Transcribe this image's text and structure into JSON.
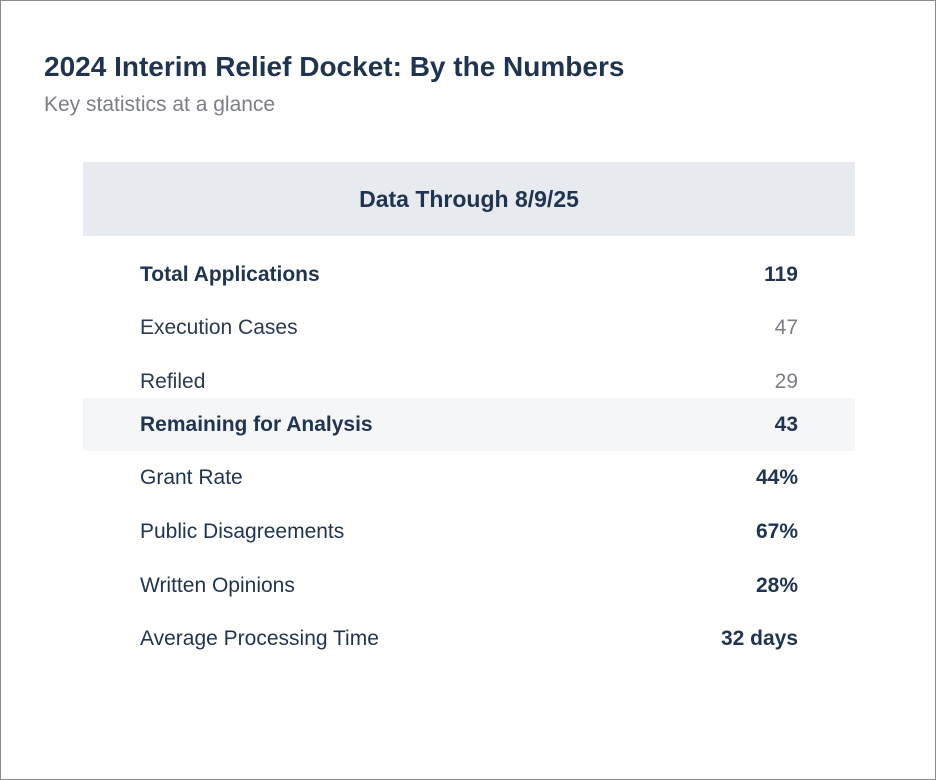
{
  "header": {
    "title": "2024 Interim Relief Docket: By the Numbers",
    "subtitle": "Key statistics at a glance"
  },
  "table": {
    "heading": "Data Through 8/9/25",
    "rows": [
      {
        "label": "Total Applications",
        "value": "119"
      },
      {
        "label": "Execution Cases",
        "value": "47"
      },
      {
        "label": "Refiled",
        "value": "29"
      },
      {
        "label": "Remaining for Analysis",
        "value": "43"
      },
      {
        "label": "Grant Rate",
        "value": "44%"
      },
      {
        "label": "Public Disagreements",
        "value": "67%"
      },
      {
        "label": "Written Opinions",
        "value": "28%"
      },
      {
        "label": "Average Processing Time",
        "value": "32 days"
      }
    ]
  }
}
